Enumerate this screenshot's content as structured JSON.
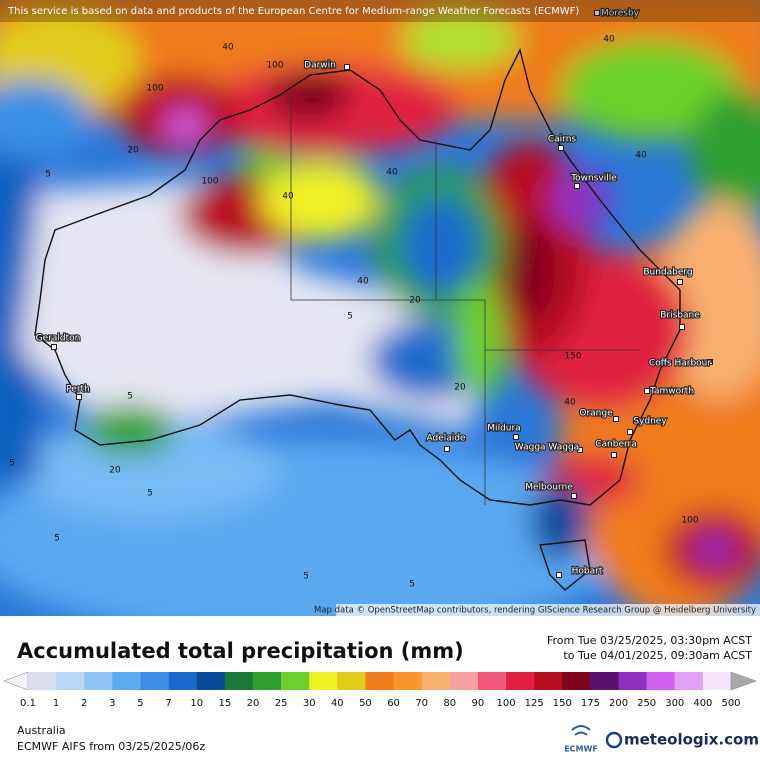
{
  "header": {
    "notice": "This service is based on data and products of the European Centre for Medium-range Weather Forecasts (ECMWF)"
  },
  "map": {
    "cities": [
      "Darwin",
      "Cairns",
      "Townsville",
      "Bundaberg",
      "Brisbane",
      "Coffs Harbour",
      "Tamworth",
      "Orange",
      "Sydney",
      "Canberra",
      "Wagga Wagga",
      "Mildura",
      "Adelaide",
      "Melbourne",
      "Hobart",
      "Perth",
      "Geraldton",
      "Moresby"
    ],
    "contour_labels": [
      "40",
      "100",
      "100",
      "20",
      "5",
      "100",
      "40",
      "40",
      "40",
      "40",
      "40",
      "20",
      "5",
      "20",
      "150",
      "40",
      "5",
      "5",
      "20",
      "5",
      "5",
      "5",
      "5",
      "100"
    ],
    "attribution": "Map data © OpenStreetMap contributors, rendering GIScience Research Group @ Heidelberg University"
  },
  "footer": {
    "title": "Accumulated total precipitation (mm)",
    "period_from": "From Tue 03/25/2025, 03:30pm ACST",
    "period_to": "to Tue 04/01/2025, 09:30am ACST",
    "legend": {
      "labels": [
        "0.1",
        "1",
        "2",
        "3",
        "5",
        "7",
        "10",
        "15",
        "20",
        "25",
        "30",
        "40",
        "50",
        "60",
        "70",
        "80",
        "90",
        "100",
        "125",
        "150",
        "175",
        "200",
        "250",
        "300",
        "400",
        "500"
      ],
      "colors": [
        "#f4f4fa",
        "#dcdcf0",
        "#b8d8f8",
        "#90c4f4",
        "#5caaf0",
        "#3a8ee6",
        "#1a6ccc",
        "#0a4c9c",
        "#1c7a38",
        "#2ea02e",
        "#6cd02c",
        "#f0f028",
        "#e0cc1c",
        "#f07c1c",
        "#f8962c",
        "#f8b070",
        "#f8a0a0",
        "#f05878",
        "#e02040",
        "#b80c20",
        "#80041c",
        "#5c1070",
        "#9030c0",
        "#d060f0",
        "#e0a0f8",
        "#f4e4fc",
        "#a8a8a8"
      ]
    },
    "region": "Australia",
    "model": "ECMWF AIFS from  03/25/2025/06z",
    "logo_left": "ECMWF",
    "logo_right": "meteologix.com"
  }
}
